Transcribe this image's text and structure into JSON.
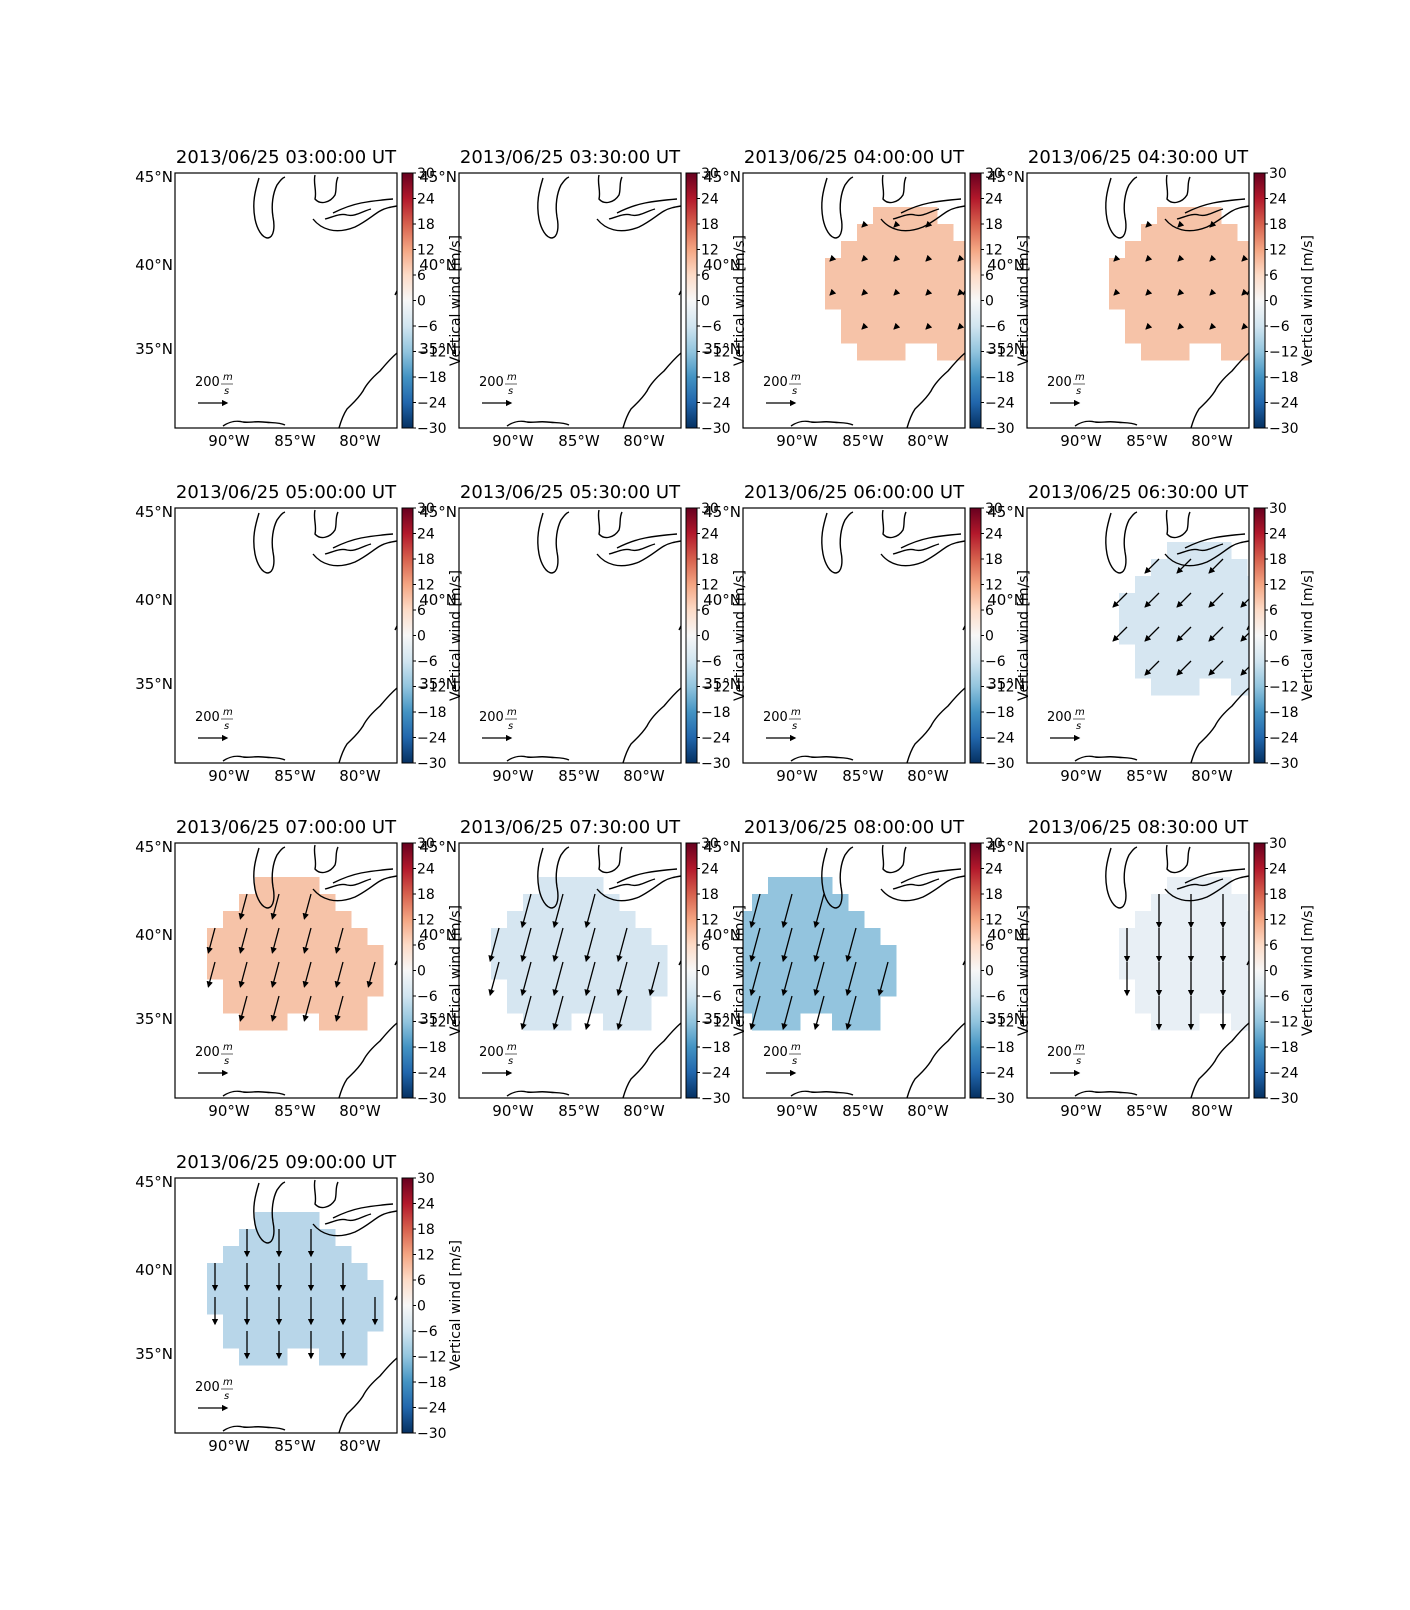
{
  "figure": {
    "colorbar_label": "Vertical wind [m/s]",
    "scale_label": "200",
    "scale_unit_num": "m",
    "scale_unit_den": "s",
    "lon_ticks": [
      "90°W",
      "85°W",
      "80°W"
    ],
    "lat_ticks": [
      "45°N",
      "40°N",
      "35°N"
    ],
    "colorbar_ticks": [
      "30",
      "24",
      "18",
      "12",
      "6",
      "0",
      "−6",
      "−12",
      "−18",
      "−24",
      "−30"
    ]
  },
  "colors": {
    "blob_pos": "#f6c3a8",
    "blob_neg_light": "#d6e6f1",
    "blob_neg_mid": "#b8d6e9",
    "blob_neg_dark": "#93c4de",
    "blob_neg_faint": "#e8eff5"
  },
  "chart_data": [
    {
      "type": "heatmap",
      "title": "2013/06/25 03:00:00 UT",
      "variable": "Vertical wind [m/s]",
      "clim": [
        -30,
        30
      ],
      "cmap": "RdBu_r",
      "value": null,
      "vector_direction": null,
      "vector_speed": null
    },
    {
      "type": "heatmap",
      "title": "2013/06/25 03:30:00 UT",
      "variable": "Vertical wind [m/s]",
      "clim": [
        -30,
        30
      ],
      "cmap": "RdBu_r",
      "value": null,
      "vector_direction": null,
      "vector_speed": null
    },
    {
      "type": "heatmap",
      "title": "2013/06/25 04:00:00 UT",
      "variable": "Vertical wind [m/s]",
      "clim": [
        -30,
        30
      ],
      "cmap": "RdBu_r",
      "value": 8,
      "vector_direction": "southwest",
      "vector_speed": 20
    },
    {
      "type": "heatmap",
      "title": "2013/06/25 04:30:00 UT",
      "variable": "Vertical wind [m/s]",
      "clim": [
        -30,
        30
      ],
      "cmap": "RdBu_r",
      "value": 6,
      "vector_direction": "southwest",
      "vector_speed": 15
    },
    {
      "type": "heatmap",
      "title": "2013/06/25 05:00:00 UT",
      "variable": "Vertical wind [m/s]",
      "clim": [
        -30,
        30
      ],
      "cmap": "RdBu_r",
      "value": null,
      "vector_direction": null,
      "vector_speed": null
    },
    {
      "type": "heatmap",
      "title": "2013/06/25 05:30:00 UT",
      "variable": "Vertical wind [m/s]",
      "clim": [
        -30,
        30
      ],
      "cmap": "RdBu_r",
      "value": null,
      "vector_direction": null,
      "vector_speed": null
    },
    {
      "type": "heatmap",
      "title": "2013/06/25 06:00:00 UT",
      "variable": "Vertical wind [m/s]",
      "clim": [
        -30,
        30
      ],
      "cmap": "RdBu_r",
      "value": null,
      "vector_direction": null,
      "vector_speed": null
    },
    {
      "type": "heatmap",
      "title": "2013/06/25 06:30:00 UT",
      "variable": "Vertical wind [m/s]",
      "clim": [
        -30,
        30
      ],
      "cmap": "RdBu_r",
      "value": -5,
      "vector_direction": "southwest",
      "vector_speed": 130
    },
    {
      "type": "heatmap",
      "title": "2013/06/25 07:00:00 UT",
      "variable": "Vertical wind [m/s]",
      "clim": [
        -30,
        30
      ],
      "cmap": "RdBu_r",
      "value": 8,
      "vector_direction": "south-southwest",
      "vector_speed": 170
    },
    {
      "type": "heatmap",
      "title": "2013/06/25 07:30:00 UT",
      "variable": "Vertical wind [m/s]",
      "clim": [
        -30,
        30
      ],
      "cmap": "RdBu_r",
      "value": -5,
      "vector_direction": "south-southwest",
      "vector_speed": 230
    },
    {
      "type": "heatmap",
      "title": "2013/06/25 08:00:00 UT",
      "variable": "Vertical wind [m/s]",
      "clim": [
        -30,
        30
      ],
      "cmap": "RdBu_r",
      "value": -12,
      "vector_direction": "south-southwest",
      "vector_speed": 280
    },
    {
      "type": "heatmap",
      "title": "2013/06/25 08:30:00 UT",
      "variable": "Vertical wind [m/s]",
      "clim": [
        -30,
        30
      ],
      "cmap": "RdBu_r",
      "value": -2,
      "vector_direction": "south",
      "vector_speed": 220
    },
    {
      "type": "heatmap",
      "title": "2013/06/25 09:00:00 UT",
      "variable": "Vertical wind [m/s]",
      "clim": [
        -30,
        30
      ],
      "cmap": "RdBu_r",
      "value": -8,
      "vector_direction": "south",
      "vector_speed": 180
    }
  ]
}
